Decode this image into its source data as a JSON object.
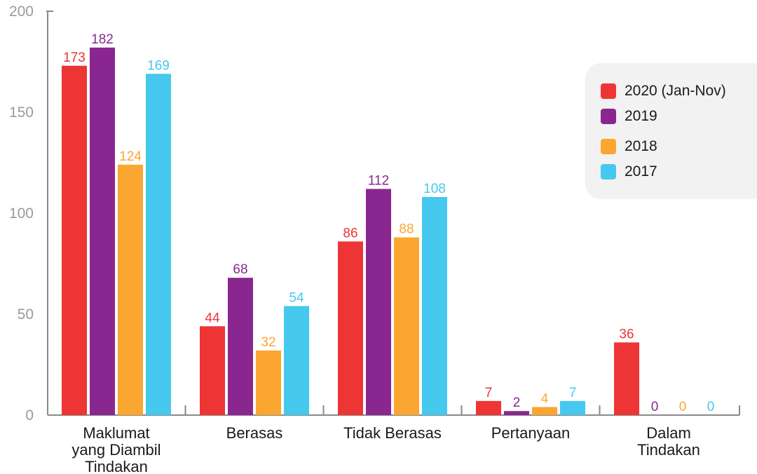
{
  "chart_data": {
    "type": "bar",
    "title": "",
    "xlabel": "",
    "ylabel": "",
    "ylim": [
      0,
      200
    ],
    "yticks": [
      0,
      50,
      100,
      150,
      200
    ],
    "categories": [
      [
        "Maklumat",
        "yang Diambil",
        "Tindakan"
      ],
      [
        "Berasas"
      ],
      [
        "Tidak Berasas"
      ],
      [
        "Pertanyaan"
      ],
      [
        "Dalam",
        "Tindakan"
      ]
    ],
    "series": [
      {
        "name": "2020 (Jan-Nov)",
        "color": "#ee3535",
        "values": [
          173,
          44,
          86,
          7,
          36
        ]
      },
      {
        "name": "2019",
        "color": "#8a2690",
        "values": [
          182,
          68,
          112,
          2,
          0
        ]
      },
      {
        "name": "2018",
        "color": "#fba631",
        "values": [
          124,
          32,
          88,
          4,
          0
        ]
      },
      {
        "name": "2017",
        "color": "#46c8ef",
        "values": [
          169,
          54,
          108,
          7,
          0
        ]
      }
    ],
    "legend_position": "top-right",
    "grid": false
  }
}
